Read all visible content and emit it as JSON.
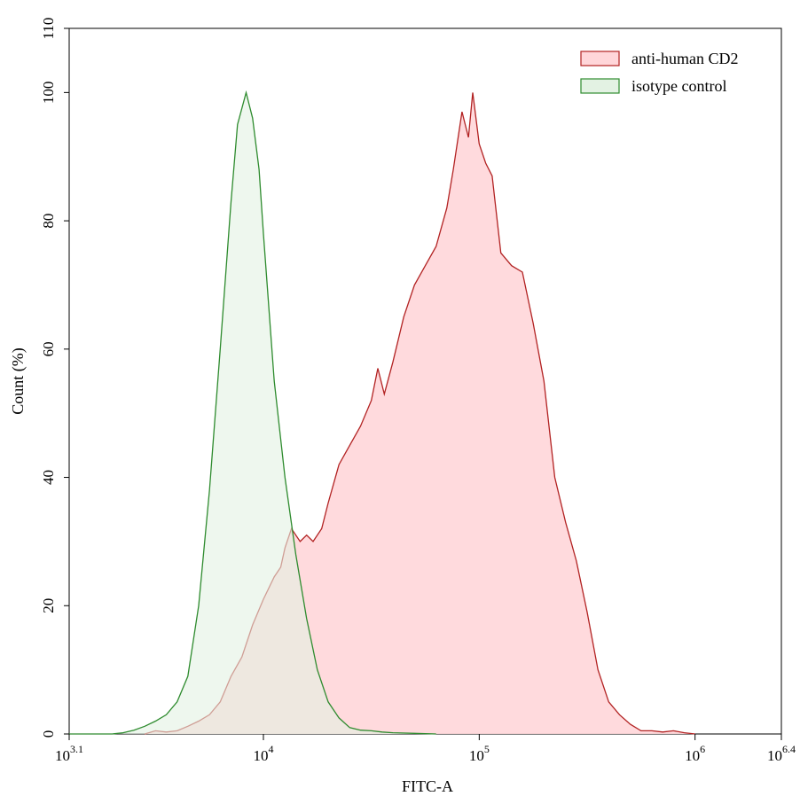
{
  "chart_data": {
    "type": "area",
    "title": "",
    "xlabel": "FITC-A",
    "ylabel": "Count  (%)",
    "x_scale": "log10",
    "xlim_log10": [
      3.1,
      6.4
    ],
    "ylim": [
      0,
      110
    ],
    "x_ticks": [
      {
        "log10": 3.1,
        "base": "10",
        "exp": "3.1"
      },
      {
        "log10": 4,
        "base": "10",
        "exp": "4"
      },
      {
        "log10": 5,
        "base": "10",
        "exp": "5"
      },
      {
        "log10": 6,
        "base": "10",
        "exp": "6"
      },
      {
        "log10": 6.4,
        "base": "10",
        "exp": "6.4"
      }
    ],
    "y_ticks": [
      "0",
      "20",
      "40",
      "60",
      "80",
      "100",
      "110"
    ],
    "legend_position": "top-right",
    "series": [
      {
        "name": "anti-human CD2",
        "stroke": "#b22222",
        "fill": "#ffd6d9",
        "points": [
          [
            3.45,
            0
          ],
          [
            3.5,
            0.5
          ],
          [
            3.55,
            0.3
          ],
          [
            3.6,
            0.5
          ],
          [
            3.65,
            1.2
          ],
          [
            3.7,
            2
          ],
          [
            3.75,
            3
          ],
          [
            3.8,
            5
          ],
          [
            3.85,
            9
          ],
          [
            3.9,
            12
          ],
          [
            3.95,
            17
          ],
          [
            4.0,
            21
          ],
          [
            4.05,
            24.5
          ],
          [
            4.08,
            26
          ],
          [
            4.1,
            29
          ],
          [
            4.13,
            32
          ],
          [
            4.17,
            30
          ],
          [
            4.2,
            31
          ],
          [
            4.23,
            30
          ],
          [
            4.27,
            32
          ],
          [
            4.3,
            36
          ],
          [
            4.35,
            42
          ],
          [
            4.4,
            45
          ],
          [
            4.45,
            48
          ],
          [
            4.5,
            52
          ],
          [
            4.53,
            57
          ],
          [
            4.56,
            53
          ],
          [
            4.6,
            58
          ],
          [
            4.65,
            65
          ],
          [
            4.7,
            70
          ],
          [
            4.75,
            73
          ],
          [
            4.8,
            76
          ],
          [
            4.85,
            82
          ],
          [
            4.88,
            88
          ],
          [
            4.92,
            97
          ],
          [
            4.95,
            93
          ],
          [
            4.97,
            100
          ],
          [
            5.0,
            92
          ],
          [
            5.03,
            89
          ],
          [
            5.06,
            87
          ],
          [
            5.1,
            75
          ],
          [
            5.15,
            73
          ],
          [
            5.2,
            72
          ],
          [
            5.25,
            64
          ],
          [
            5.3,
            55
          ],
          [
            5.35,
            40
          ],
          [
            5.4,
            33
          ],
          [
            5.45,
            27
          ],
          [
            5.5,
            19
          ],
          [
            5.55,
            10
          ],
          [
            5.6,
            5
          ],
          [
            5.65,
            3
          ],
          [
            5.7,
            1.5
          ],
          [
            5.75,
            0.5
          ],
          [
            5.8,
            0.5
          ],
          [
            5.85,
            0.3
          ],
          [
            5.9,
            0.5
          ],
          [
            5.95,
            0.2
          ],
          [
            6.0,
            0
          ]
        ]
      },
      {
        "name": "isotype control",
        "stroke": "#2e8b2e",
        "fill": "#e3f2e3",
        "points": [
          [
            3.1,
            0
          ],
          [
            3.3,
            0
          ],
          [
            3.35,
            0.2
          ],
          [
            3.4,
            0.6
          ],
          [
            3.45,
            1.2
          ],
          [
            3.5,
            2
          ],
          [
            3.55,
            3
          ],
          [
            3.6,
            5
          ],
          [
            3.65,
            9
          ],
          [
            3.7,
            20
          ],
          [
            3.75,
            38
          ],
          [
            3.8,
            60
          ],
          [
            3.85,
            83
          ],
          [
            3.88,
            95
          ],
          [
            3.92,
            100
          ],
          [
            3.95,
            96
          ],
          [
            3.98,
            88
          ],
          [
            4.0,
            78
          ],
          [
            4.05,
            55
          ],
          [
            4.1,
            40
          ],
          [
            4.15,
            28
          ],
          [
            4.2,
            18
          ],
          [
            4.25,
            10
          ],
          [
            4.3,
            5
          ],
          [
            4.35,
            2.5
          ],
          [
            4.4,
            1
          ],
          [
            4.45,
            0.6
          ],
          [
            4.5,
            0.5
          ],
          [
            4.55,
            0.3
          ],
          [
            4.6,
            0.2
          ],
          [
            4.7,
            0.1
          ],
          [
            4.8,
            0
          ]
        ]
      }
    ]
  }
}
